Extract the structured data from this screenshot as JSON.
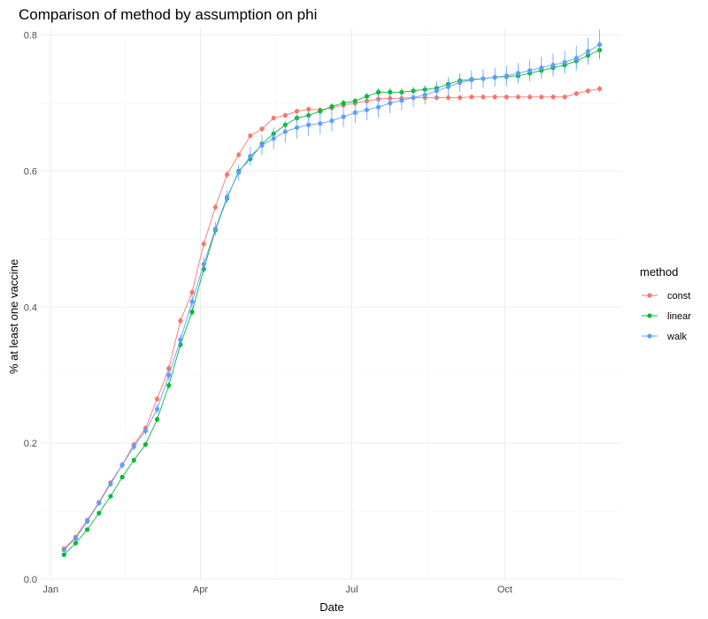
{
  "chart_data": {
    "type": "line",
    "title": "Comparison of method by assumption on phi",
    "xlabel": "Date",
    "ylabel": "% at least one vaccine",
    "xlim": [
      "2020-12-26",
      "2021-12-10"
    ],
    "ylim": [
      0,
      0.81
    ],
    "x_ticks": [
      {
        "date": "2021-01-01",
        "label": "Jan"
      },
      {
        "date": "2021-04-01",
        "label": "Apr"
      },
      {
        "date": "2021-07-01",
        "label": "Jul"
      },
      {
        "date": "2021-10-01",
        "label": "Oct"
      }
    ],
    "y_ticks": [
      0.0,
      0.2,
      0.4,
      0.6,
      0.8
    ],
    "y_tick_labels": [
      "0.0",
      "0.2",
      "0.4",
      "0.6",
      "0.8"
    ],
    "grid": true,
    "legend": {
      "title": "method",
      "position": "right"
    },
    "colors": {
      "const": "#F8766D",
      "linear": "#00BA38",
      "walk": "#619CFF",
      "grid_major": "#ebebeb",
      "grid_minor": "#f5f5f5"
    },
    "x": [
      "2021-01-09",
      "2021-01-16",
      "2021-01-23",
      "2021-01-30",
      "2021-02-06",
      "2021-02-13",
      "2021-02-20",
      "2021-02-27",
      "2021-03-06",
      "2021-03-13",
      "2021-03-20",
      "2021-03-27",
      "2021-04-03",
      "2021-04-10",
      "2021-04-17",
      "2021-04-24",
      "2021-05-01",
      "2021-05-08",
      "2021-05-15",
      "2021-05-22",
      "2021-05-29",
      "2021-06-05",
      "2021-06-12",
      "2021-06-19",
      "2021-06-26",
      "2021-07-03",
      "2021-07-10",
      "2021-07-17",
      "2021-07-24",
      "2021-07-31",
      "2021-08-07",
      "2021-08-14",
      "2021-08-21",
      "2021-08-28",
      "2021-09-04",
      "2021-09-11",
      "2021-09-18",
      "2021-09-25",
      "2021-10-02",
      "2021-10-09",
      "2021-10-16",
      "2021-10-23",
      "2021-10-30",
      "2021-11-06",
      "2021-11-13",
      "2021-11-20",
      "2021-11-27"
    ],
    "series": [
      {
        "name": "const",
        "values": [
          0.045,
          0.062,
          0.087,
          0.113,
          0.142,
          0.168,
          0.198,
          0.222,
          0.265,
          0.31,
          0.38,
          0.422,
          0.493,
          0.547,
          0.595,
          0.624,
          0.652,
          0.662,
          0.678,
          0.682,
          0.688,
          0.691,
          0.69,
          0.693,
          0.697,
          0.7,
          0.703,
          0.706,
          0.707,
          0.707,
          0.708,
          0.708,
          0.708,
          0.708,
          0.708,
          0.709,
          0.709,
          0.709,
          0.709,
          0.709,
          0.709,
          0.709,
          0.709,
          0.709,
          0.714,
          0.718,
          0.721
        ],
        "errors": [
          0.003,
          0.003,
          0.003,
          0.003,
          0.003,
          0.004,
          0.004,
          0.004,
          0.004,
          0.005,
          0.005,
          0.005,
          0.005,
          0.005,
          0.005,
          0.004,
          0.004,
          0.004,
          0.004,
          0.004,
          0.004,
          0.004,
          0.004,
          0.004,
          0.004,
          0.004,
          0.004,
          0.004,
          0.004,
          0.004,
          0.004,
          0.004,
          0.004,
          0.004,
          0.004,
          0.004,
          0.004,
          0.004,
          0.004,
          0.004,
          0.004,
          0.004,
          0.004,
          0.004,
          0.004,
          0.004,
          0.005
        ]
      },
      {
        "name": "linear",
        "values": [
          0.036,
          0.053,
          0.073,
          0.097,
          0.122,
          0.15,
          0.175,
          0.198,
          0.235,
          0.285,
          0.345,
          0.393,
          0.456,
          0.513,
          0.56,
          0.6,
          0.618,
          0.64,
          0.655,
          0.668,
          0.678,
          0.682,
          0.688,
          0.695,
          0.7,
          0.703,
          0.71,
          0.716,
          0.716,
          0.716,
          0.718,
          0.72,
          0.722,
          0.728,
          0.733,
          0.735,
          0.736,
          0.738,
          0.739,
          0.74,
          0.744,
          0.748,
          0.752,
          0.756,
          0.762,
          0.77,
          0.778
        ],
        "errors": [
          0.003,
          0.003,
          0.003,
          0.003,
          0.003,
          0.003,
          0.004,
          0.004,
          0.004,
          0.005,
          0.005,
          0.005,
          0.005,
          0.005,
          0.005,
          0.005,
          0.005,
          0.005,
          0.005,
          0.005,
          0.005,
          0.005,
          0.005,
          0.005,
          0.005,
          0.005,
          0.005,
          0.006,
          0.006,
          0.006,
          0.006,
          0.006,
          0.006,
          0.006,
          0.006,
          0.007,
          0.007,
          0.007,
          0.008,
          0.008,
          0.008,
          0.009,
          0.009,
          0.01,
          0.01,
          0.011,
          0.012
        ]
      },
      {
        "name": "walk",
        "values": [
          0.043,
          0.06,
          0.085,
          0.112,
          0.14,
          0.168,
          0.195,
          0.218,
          0.25,
          0.3,
          0.352,
          0.408,
          0.463,
          0.515,
          0.562,
          0.598,
          0.622,
          0.638,
          0.648,
          0.658,
          0.664,
          0.668,
          0.67,
          0.674,
          0.68,
          0.686,
          0.69,
          0.694,
          0.7,
          0.704,
          0.708,
          0.712,
          0.718,
          0.724,
          0.73,
          0.734,
          0.736,
          0.738,
          0.74,
          0.744,
          0.748,
          0.752,
          0.756,
          0.76,
          0.766,
          0.776,
          0.786
        ],
        "errors": [
          0.003,
          0.004,
          0.004,
          0.004,
          0.005,
          0.005,
          0.006,
          0.006,
          0.007,
          0.008,
          0.008,
          0.009,
          0.01,
          0.01,
          0.01,
          0.012,
          0.014,
          0.015,
          0.016,
          0.016,
          0.016,
          0.016,
          0.016,
          0.016,
          0.015,
          0.015,
          0.015,
          0.015,
          0.015,
          0.015,
          0.014,
          0.014,
          0.014,
          0.014,
          0.014,
          0.014,
          0.014,
          0.014,
          0.015,
          0.015,
          0.016,
          0.016,
          0.017,
          0.017,
          0.018,
          0.02,
          0.022
        ]
      }
    ]
  }
}
